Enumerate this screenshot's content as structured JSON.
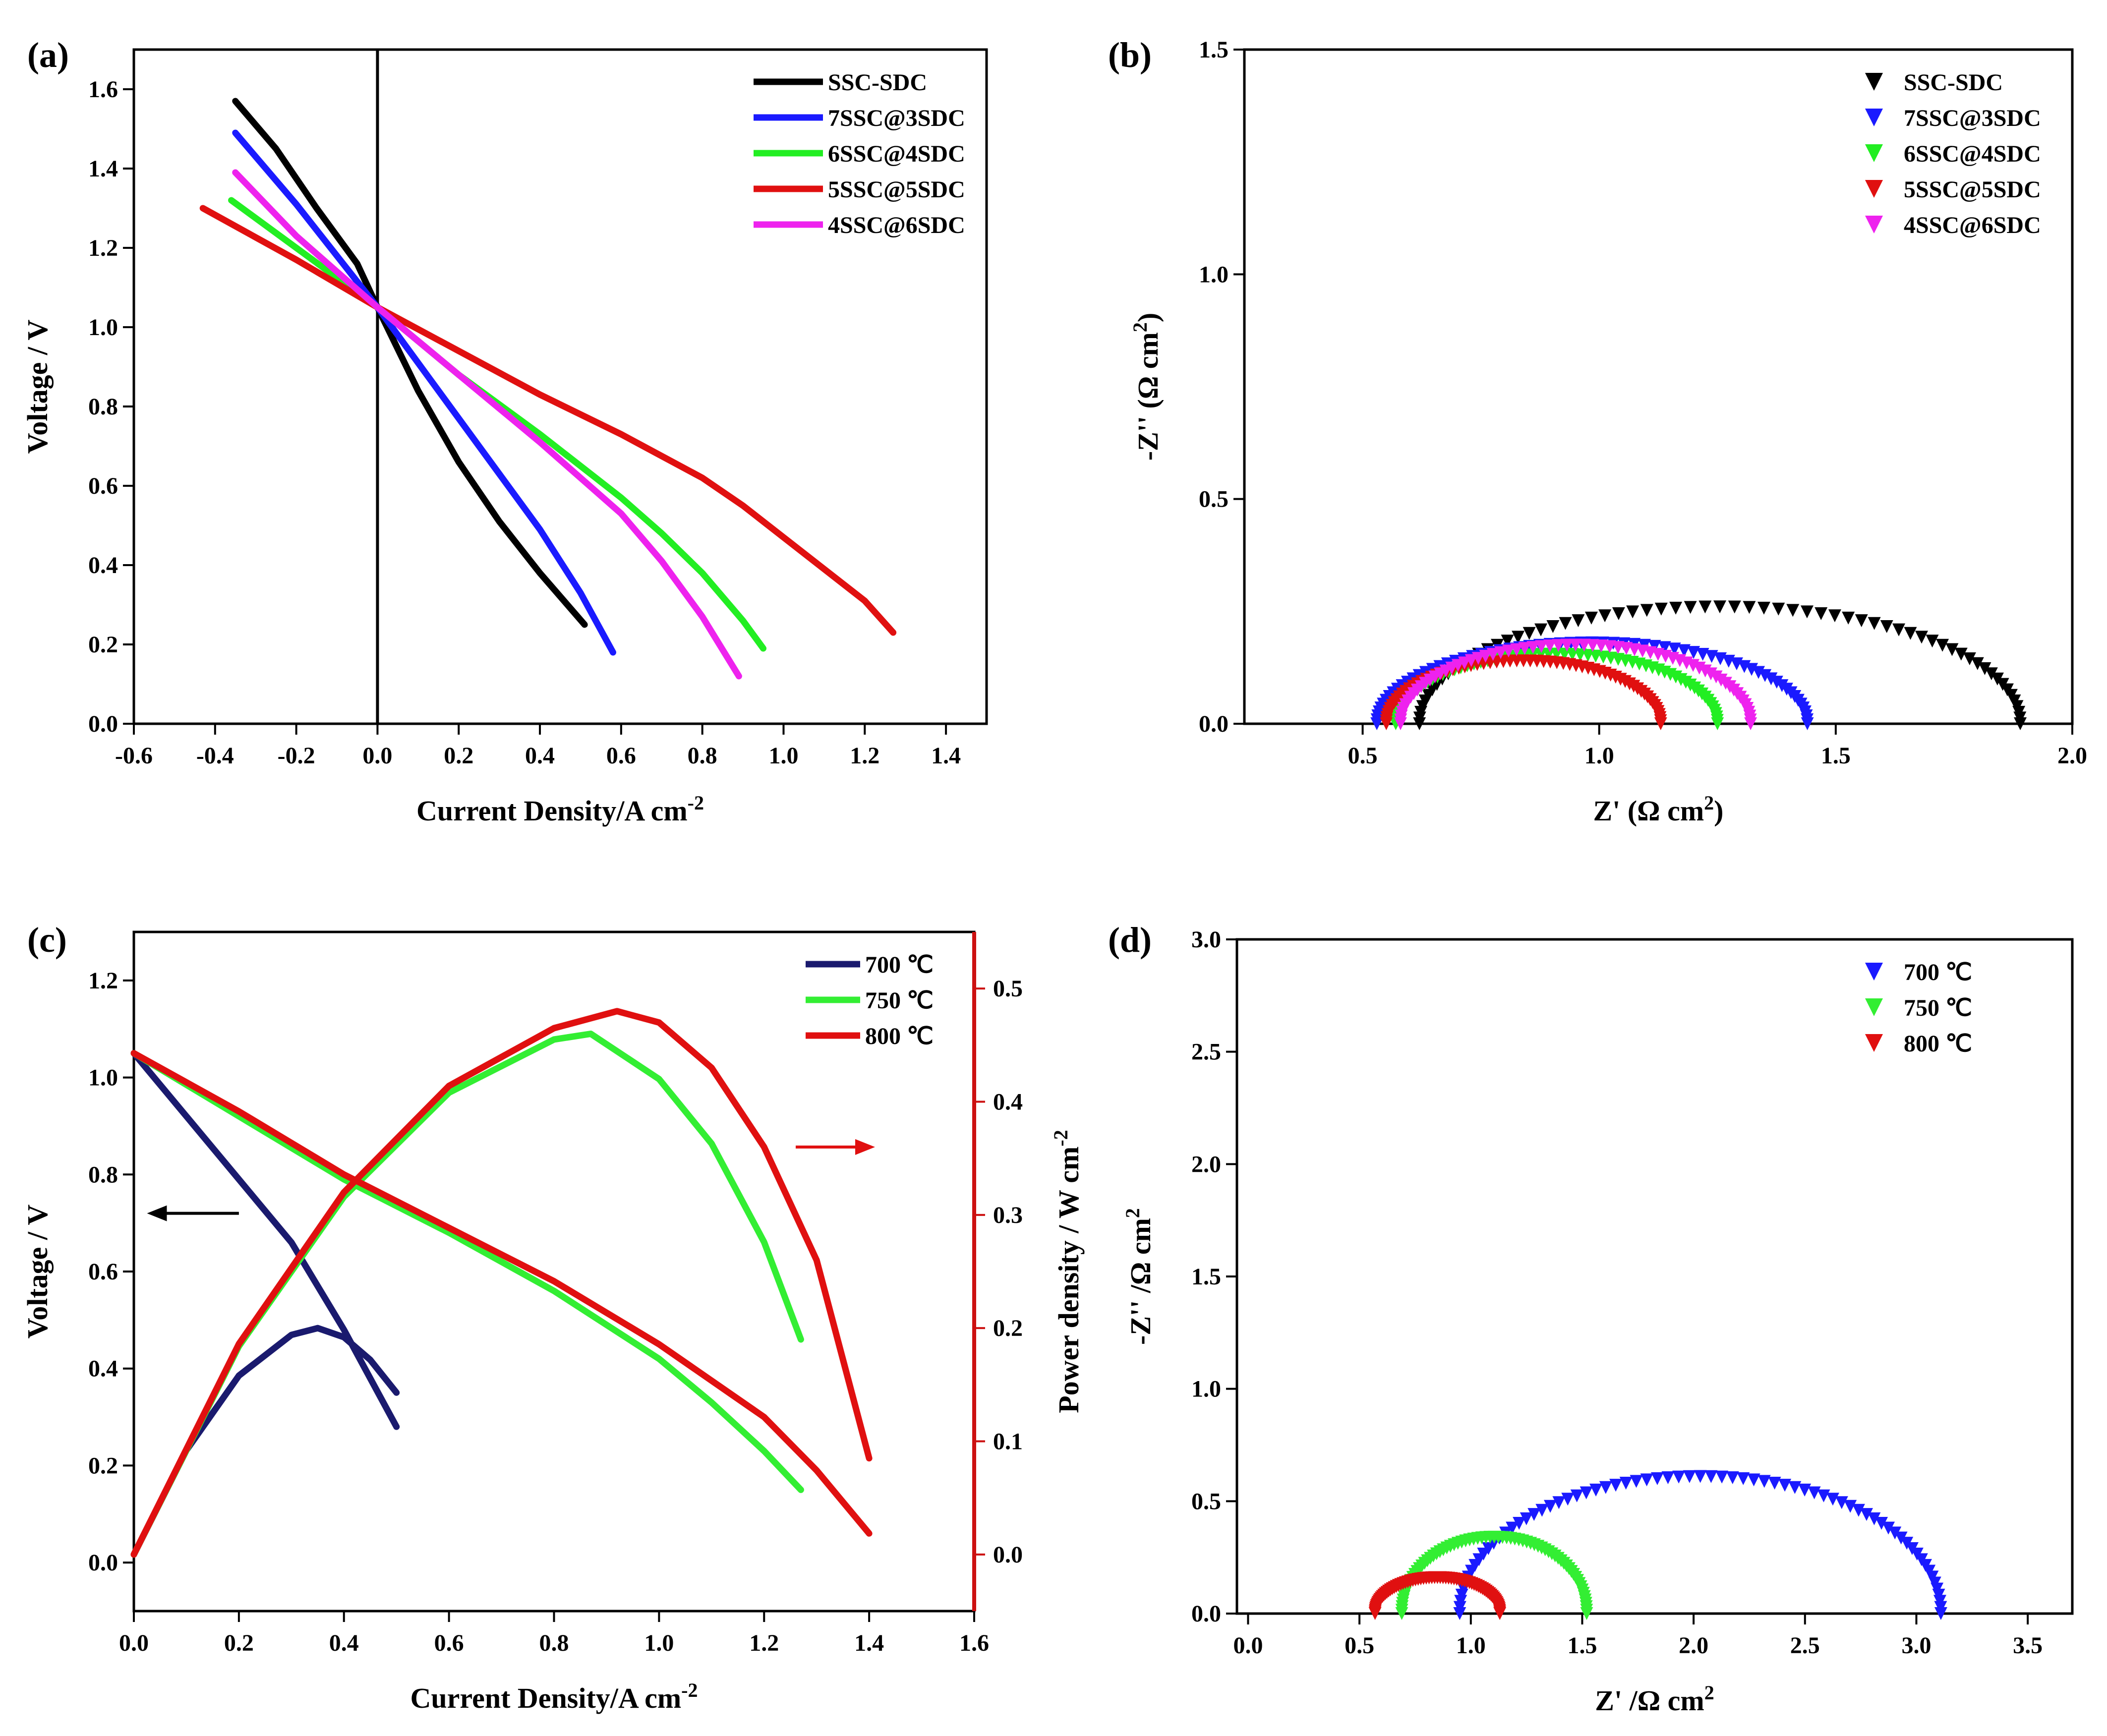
{
  "chart_data": [
    {
      "panel": "(a)",
      "type": "line",
      "xlabel": "Current Density/A cm",
      "xlabel_sup": "-2",
      "ylabel": "Voltage / V",
      "xlim": [
        -0.6,
        1.5
      ],
      "ylim": [
        0.0,
        1.7
      ],
      "xticks": [
        "-0.6",
        "-0.4",
        "-0.2",
        "0.0",
        "0.2",
        "0.4",
        "0.6",
        "0.8",
        "1.0",
        "1.2",
        "1.4"
      ],
      "yticks": [
        "0.0",
        "0.2",
        "0.4",
        "0.6",
        "0.8",
        "1.0",
        "1.2",
        "1.4",
        "1.6"
      ],
      "legend": "top-right",
      "series": [
        {
          "name": "SSC-SDC",
          "color": "#000000",
          "x": [
            -0.35,
            -0.25,
            -0.15,
            -0.05,
            0.0,
            0.1,
            0.2,
            0.3,
            0.4,
            0.51
          ],
          "y": [
            1.57,
            1.45,
            1.3,
            1.16,
            1.05,
            0.84,
            0.66,
            0.51,
            0.38,
            0.25
          ]
        },
        {
          "name": "7SSC@3SDC",
          "color": "#1a1aff",
          "x": [
            -0.35,
            -0.2,
            -0.1,
            0.0,
            0.1,
            0.2,
            0.3,
            0.4,
            0.5,
            0.58
          ],
          "y": [
            1.49,
            1.31,
            1.18,
            1.05,
            0.91,
            0.77,
            0.63,
            0.49,
            0.33,
            0.18
          ]
        },
        {
          "name": "6SSC@4SDC",
          "color": "#22ee22",
          "x": [
            -0.36,
            -0.2,
            0.0,
            0.2,
            0.4,
            0.6,
            0.7,
            0.8,
            0.9,
            0.95
          ],
          "y": [
            1.32,
            1.2,
            1.05,
            0.88,
            0.73,
            0.57,
            0.48,
            0.38,
            0.26,
            0.19
          ]
        },
        {
          "name": "5SSC@5SDC",
          "color": "#e01010",
          "x": [
            -0.43,
            -0.2,
            0.0,
            0.2,
            0.4,
            0.6,
            0.8,
            0.9,
            1.0,
            1.1,
            1.2,
            1.27
          ],
          "y": [
            1.3,
            1.17,
            1.05,
            0.94,
            0.83,
            0.73,
            0.62,
            0.55,
            0.47,
            0.39,
            0.31,
            0.23
          ]
        },
        {
          "name": "4SSC@6SDC",
          "color": "#ee22ee",
          "x": [
            -0.35,
            -0.2,
            0.0,
            0.2,
            0.4,
            0.5,
            0.6,
            0.7,
            0.8,
            0.89
          ],
          "y": [
            1.39,
            1.23,
            1.05,
            0.88,
            0.71,
            0.62,
            0.53,
            0.41,
            0.27,
            0.12
          ]
        }
      ]
    },
    {
      "panel": "(b)",
      "type": "scatter",
      "xlabel": "Z' (Ω cm",
      "xlabel_sup": "2",
      "xlabel_end": ")",
      "ylabel": "-Z'' (Ω cm",
      "ylabel_sup": "2",
      "ylabel_end": ")",
      "xlim": [
        0.25,
        2.0
      ],
      "ylim": [
        0.0,
        1.5
      ],
      "xticks": [
        "0.5",
        "1.0",
        "1.5",
        "2.0"
      ],
      "yticks": [
        "0.0",
        "0.5",
        "1.0",
        "1.5"
      ],
      "legend": "top-right",
      "marker": "down-triangle",
      "series": [
        {
          "name": "SSC-SDC",
          "color": "#000000",
          "arc": {
            "start": 0.62,
            "end": 1.89,
            "height": 0.26
          }
        },
        {
          "name": "7SSC@3SDC",
          "color": "#1a1aff",
          "arc": {
            "start": 0.53,
            "end": 1.44,
            "height": 0.18
          }
        },
        {
          "name": "6SSC@4SDC",
          "color": "#22ee22",
          "arc": {
            "start": 0.57,
            "end": 1.25,
            "height": 0.155
          }
        },
        {
          "name": "5SSC@5SDC",
          "color": "#e01010",
          "arc": {
            "start": 0.55,
            "end": 1.13,
            "height": 0.14
          }
        },
        {
          "name": "4SSC@6SDC",
          "color": "#ee22ee",
          "arc": {
            "start": 0.58,
            "end": 1.32,
            "height": 0.175
          }
        }
      ]
    },
    {
      "panel": "(c)",
      "type": "line",
      "xlabel": "Current Density/A cm",
      "xlabel_sup": "-2",
      "ylabel": "Voltage / V",
      "y2label": "Power density / W cm",
      "y2label_sup": "-2",
      "xlim": [
        0.0,
        1.6
      ],
      "ylim": [
        -0.1,
        1.3
      ],
      "y2lim": [
        -0.05,
        0.55
      ],
      "xticks": [
        "0.0",
        "0.2",
        "0.4",
        "0.6",
        "0.8",
        "1.0",
        "1.2",
        "1.4",
        "1.6"
      ],
      "yticks": [
        "0.0",
        "0.2",
        "0.4",
        "0.6",
        "0.8",
        "1.0",
        "1.2"
      ],
      "y2ticks": [
        "0.0",
        "0.1",
        "0.2",
        "0.3",
        "0.4",
        "0.5"
      ],
      "y2_color": "#cc1111",
      "legend": "top-right",
      "series": [
        {
          "name": "700 ℃",
          "color": "#1a1a6e",
          "voltage": {
            "x": [
              0.0,
              0.1,
              0.2,
              0.3,
              0.4,
              0.5
            ],
            "y": [
              1.05,
              0.92,
              0.79,
              0.66,
              0.48,
              0.28
            ]
          },
          "power": {
            "x": [
              0.0,
              0.1,
              0.2,
              0.3,
              0.35,
              0.4,
              0.45,
              0.5
            ],
            "y": [
              0.0,
              0.092,
              0.158,
              0.194,
              0.2,
              0.192,
              0.172,
              0.143
            ]
          }
        },
        {
          "name": "750 ℃",
          "color": "#33ee33",
          "voltage": {
            "x": [
              0.0,
              0.2,
              0.4,
              0.6,
              0.8,
              1.0,
              1.1,
              1.2,
              1.27
            ],
            "y": [
              1.05,
              0.92,
              0.79,
              0.68,
              0.56,
              0.42,
              0.33,
              0.23,
              0.15
            ]
          },
          "power": {
            "x": [
              0.0,
              0.2,
              0.4,
              0.6,
              0.8,
              0.87,
              1.0,
              1.1,
              1.2,
              1.27
            ],
            "y": [
              0.0,
              0.184,
              0.316,
              0.408,
              0.455,
              0.46,
              0.42,
              0.363,
              0.276,
              0.19
            ]
          }
        },
        {
          "name": "800 ℃",
          "color": "#e01010",
          "voltage": {
            "x": [
              0.0,
              0.2,
              0.4,
              0.6,
              0.8,
              1.0,
              1.2,
              1.3,
              1.4
            ],
            "y": [
              1.05,
              0.93,
              0.8,
              0.69,
              0.58,
              0.45,
              0.3,
              0.19,
              0.06
            ]
          },
          "power": {
            "x": [
              0.0,
              0.2,
              0.4,
              0.6,
              0.8,
              0.92,
              1.0,
              1.1,
              1.2,
              1.3,
              1.4
            ],
            "y": [
              0.0,
              0.186,
              0.32,
              0.414,
              0.465,
              0.48,
              0.47,
              0.43,
              0.36,
              0.26,
              0.085
            ]
          }
        }
      ]
    },
    {
      "panel": "(d)",
      "type": "scatter",
      "xlabel": "Z' /Ω cm",
      "xlabel_sup": "2",
      "ylabel": "-Z'' /Ω cm",
      "ylabel_sup": "2",
      "xlim": [
        -0.05,
        3.7
      ],
      "ylim": [
        0.0,
        3.0
      ],
      "xticks": [
        "0.0",
        "0.5",
        "1.0",
        "1.5",
        "2.0",
        "2.5",
        "3.0",
        "3.5"
      ],
      "yticks": [
        "0.0",
        "0.5",
        "1.0",
        "1.5",
        "2.0",
        "2.5",
        "3.0"
      ],
      "legend": "top-right",
      "marker": "down-triangle",
      "series": [
        {
          "name": "700 ℃",
          "color": "#1a1aff",
          "arc": {
            "start": 0.95,
            "end": 3.11,
            "height": 0.61
          }
        },
        {
          "name": "750 ℃",
          "color": "#33ee33",
          "arc": {
            "start": 0.69,
            "end": 1.52,
            "height": 0.34
          }
        },
        {
          "name": "800 ℃",
          "color": "#e01010",
          "arc": {
            "start": 0.57,
            "end": 1.13,
            "height": 0.16
          }
        }
      ]
    }
  ]
}
